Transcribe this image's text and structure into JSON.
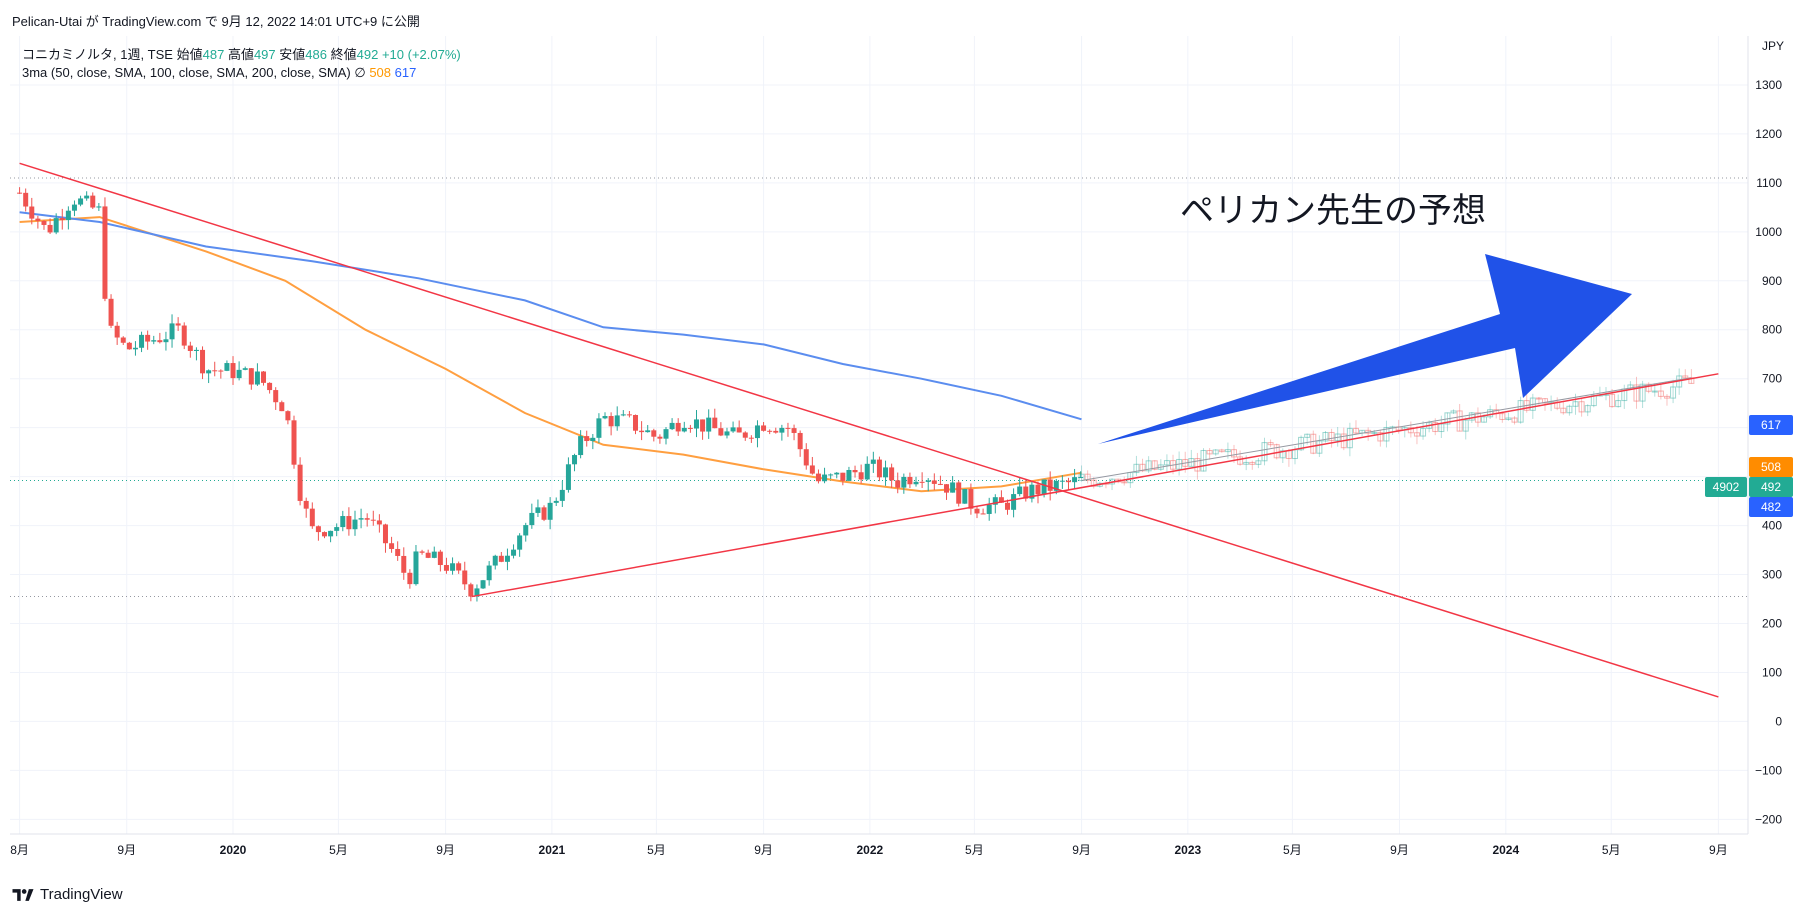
{
  "header": {
    "attribution": "Pelican-Utai が TradingView.com で 9月 12, 2022 14:01 UTC+9 に公開"
  },
  "legend": {
    "symbol": "コニカミノルタ, 1週, TSE",
    "open_label": "始値",
    "open": "487",
    "high_label": "高値",
    "high": "497",
    "low_label": "安値",
    "low": "486",
    "close_label": "終値",
    "close": "492",
    "change": "+10 (+2.07%)",
    "indicator": "3ma (50, close, SMA, 100, close, SMA, 200, close, SMA)",
    "indicator_symbol": "∅",
    "ma1_value": "508",
    "ma2_value": "617"
  },
  "annotation": {
    "text": "ペリカン先生の予想"
  },
  "footer": {
    "brand": "TradingView"
  },
  "colors": {
    "up": "#26a69a",
    "down": "#ef5350",
    "ma_orange": "#ff9f40",
    "ma_blue": "#5b8def",
    "trend_red": "#f23645",
    "arrow_blue": "#2052e8",
    "price_tag_green": "#22ab94",
    "tag_orange": "#ff8c00",
    "tag_blue": "#2962ff"
  },
  "chart_data": {
    "type": "candlestick",
    "title": "コニカミノルタ, 1週, TSE",
    "currency": "JPY",
    "y_ticks": [
      1300,
      1200,
      1100,
      1000,
      900,
      800,
      700,
      600,
      500,
      400,
      300,
      200,
      100,
      0,
      -100,
      -200
    ],
    "y_range": [
      -230,
      1400
    ],
    "x_ticks": [
      {
        "label": "8月",
        "date": "2019-05"
      },
      {
        "label": "9月",
        "date": "2019-09"
      },
      {
        "label": "2020",
        "date": "2020-01"
      },
      {
        "label": "5月",
        "date": "2020-05"
      },
      {
        "label": "9月",
        "date": "2020-09"
      },
      {
        "label": "2021",
        "date": "2021-01"
      },
      {
        "label": "5月",
        "date": "2021-05"
      },
      {
        "label": "9月",
        "date": "2021-09"
      },
      {
        "label": "2022",
        "date": "2022-01"
      },
      {
        "label": "5月",
        "date": "2022-05"
      },
      {
        "label": "9月",
        "date": "2022-09"
      },
      {
        "label": "2023",
        "date": "2023-01"
      },
      {
        "label": "5月",
        "date": "2023-05"
      },
      {
        "label": "9月",
        "date": "2023-09"
      },
      {
        "label": "2024",
        "date": "2024-01"
      },
      {
        "label": "5月",
        "date": "2024-05"
      },
      {
        "label": "9月",
        "date": "2024-09"
      }
    ],
    "price_keypoints": [
      {
        "date": "2019-05",
        "value": 1080
      },
      {
        "date": "2019-06",
        "value": 1000
      },
      {
        "date": "2019-07",
        "value": 1070
      },
      {
        "date": "2019-08",
        "value": 1040
      },
      {
        "date": "2019-08-10",
        "value": 800
      },
      {
        "date": "2019-09",
        "value": 760
      },
      {
        "date": "2019-10",
        "value": 780
      },
      {
        "date": "2019-11",
        "value": 800
      },
      {
        "date": "2019-12",
        "value": 720
      },
      {
        "date": "2020-01",
        "value": 715
      },
      {
        "date": "2020-02",
        "value": 700
      },
      {
        "date": "2020-03",
        "value": 640
      },
      {
        "date": "2020-03-20",
        "value": 450
      },
      {
        "date": "2020-04",
        "value": 390
      },
      {
        "date": "2020-05",
        "value": 400
      },
      {
        "date": "2020-06",
        "value": 420
      },
      {
        "date": "2020-07",
        "value": 350
      },
      {
        "date": "2020-07-20",
        "value": 290
      },
      {
        "date": "2020-08",
        "value": 340
      },
      {
        "date": "2020-09",
        "value": 320
      },
      {
        "date": "2020-10",
        "value": 270
      },
      {
        "date": "2020-11",
        "value": 330
      },
      {
        "date": "2020-12",
        "value": 400
      },
      {
        "date": "2021-01",
        "value": 440
      },
      {
        "date": "2021-02",
        "value": 560
      },
      {
        "date": "2021-03",
        "value": 620
      },
      {
        "date": "2021-04",
        "value": 610
      },
      {
        "date": "2021-05",
        "value": 580
      },
      {
        "date": "2021-06",
        "value": 620
      },
      {
        "date": "2021-07",
        "value": 600
      },
      {
        "date": "2021-08",
        "value": 580
      },
      {
        "date": "2021-09",
        "value": 610
      },
      {
        "date": "2021-10",
        "value": 600
      },
      {
        "date": "2021-11",
        "value": 490
      },
      {
        "date": "2021-12",
        "value": 500
      },
      {
        "date": "2022-01",
        "value": 520
      },
      {
        "date": "2022-02",
        "value": 490
      },
      {
        "date": "2022-03",
        "value": 510
      },
      {
        "date": "2022-04",
        "value": 480
      },
      {
        "date": "2022-05",
        "value": 440
      },
      {
        "date": "2022-06",
        "value": 440
      },
      {
        "date": "2022-07",
        "value": 470
      },
      {
        "date": "2022-08",
        "value": 480
      },
      {
        "date": "2022-09",
        "value": 492
      }
    ],
    "ma50": [
      {
        "date": "2019-05",
        "value": 1020
      },
      {
        "date": "2019-08",
        "value": 1030
      },
      {
        "date": "2019-12",
        "value": 960
      },
      {
        "date": "2020-03",
        "value": 900
      },
      {
        "date": "2020-06",
        "value": 800
      },
      {
        "date": "2020-09",
        "value": 720
      },
      {
        "date": "2020-12",
        "value": 630
      },
      {
        "date": "2021-03",
        "value": 565
      },
      {
        "date": "2021-06",
        "value": 545
      },
      {
        "date": "2021-09",
        "value": 515
      },
      {
        "date": "2021-12",
        "value": 490
      },
      {
        "date": "2022-03",
        "value": 470
      },
      {
        "date": "2022-06",
        "value": 480
      },
      {
        "date": "2022-09",
        "value": 508
      }
    ],
    "ma200": [
      {
        "date": "2019-05",
        "value": 1040
      },
      {
        "date": "2019-08",
        "value": 1020
      },
      {
        "date": "2019-12",
        "value": 970
      },
      {
        "date": "2020-04",
        "value": 940
      },
      {
        "date": "2020-08",
        "value": 905
      },
      {
        "date": "2020-12",
        "value": 860
      },
      {
        "date": "2021-03",
        "value": 805
      },
      {
        "date": "2021-06",
        "value": 790
      },
      {
        "date": "2021-09",
        "value": 770
      },
      {
        "date": "2021-12",
        "value": 730
      },
      {
        "date": "2022-03",
        "value": 700
      },
      {
        "date": "2022-06",
        "value": 665
      },
      {
        "date": "2022-09",
        "value": 617
      }
    ],
    "trendline_down": [
      {
        "date": "2019-05",
        "value": 1140
      },
      {
        "date": "2024-09",
        "value": 50
      }
    ],
    "trendline_up": [
      {
        "date": "2020-10",
        "value": 255
      },
      {
        "date": "2024-09",
        "value": 710
      }
    ],
    "projection": [
      {
        "date": "2022-09",
        "value": 492
      },
      {
        "date": "2024-08",
        "value": 690
      }
    ],
    "horizontal_levels": [
      1110,
      492,
      255
    ],
    "price_tags": [
      {
        "label": "617",
        "value": 617
      },
      {
        "label": "508",
        "value": 508
      },
      {
        "label": "4902",
        "value": 492
      },
      {
        "label": "492",
        "value": 492
      },
      {
        "label": "482",
        "value": 482
      }
    ]
  }
}
